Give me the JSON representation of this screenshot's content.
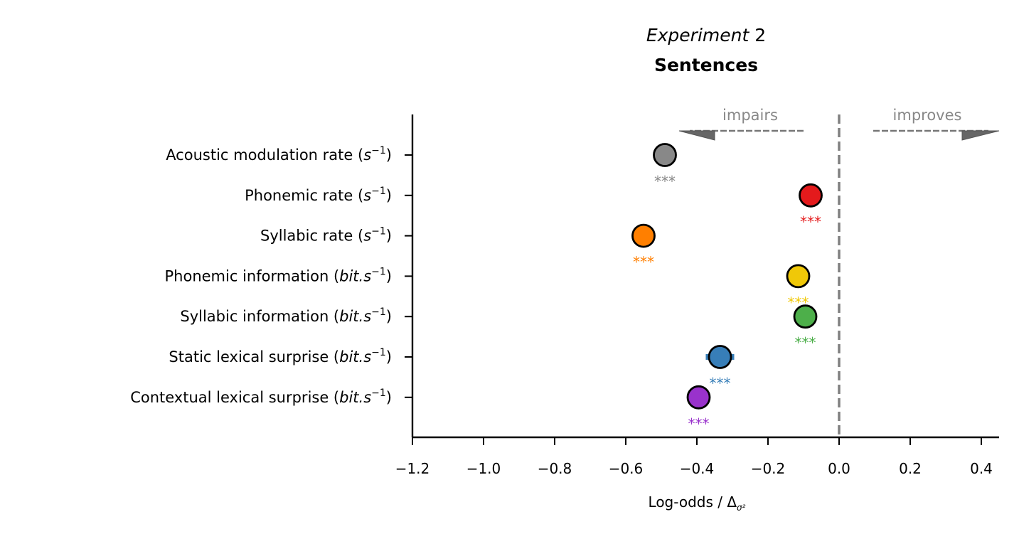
{
  "chart_data": {
    "type": "scatter",
    "title_line1_word": "Experiment",
    "title_line1_num": "2",
    "title_line2": "Sentences",
    "xlabel_main": "Log-odds / Δ",
    "xlabel_sub": "σ²",
    "xlim": [
      -1.2,
      0.45
    ],
    "x_ticks": [
      -1.2,
      -1.0,
      -0.8,
      -0.6,
      -0.4,
      -0.2,
      0.0,
      0.2,
      0.4
    ],
    "x_tick_labels": [
      "−1.2",
      "−1.0",
      "−0.8",
      "−0.6",
      "−0.4",
      "−0.2",
      "0.0",
      "0.2",
      "0.4"
    ],
    "reference_line_x": 0.0,
    "annotations": {
      "left": "impairs",
      "right": "improves"
    },
    "points": [
      {
        "label_main": "Acoustic modulation rate (",
        "label_math": "s",
        "label_sup": "−1",
        "label_end": ")",
        "x": -0.49,
        "sig": "***",
        "color": "#888888"
      },
      {
        "label_main": "Phonemic rate (",
        "label_math": "s",
        "label_sup": "−1",
        "label_end": ")",
        "x": -0.08,
        "sig": "***",
        "color": "#e41a1c"
      },
      {
        "label_main": "Syllabic rate (",
        "label_math": "s",
        "label_sup": "−1",
        "label_end": ")",
        "x": -0.55,
        "sig": "***",
        "color": "#ff7f00"
      },
      {
        "label_main": "Phonemic information (",
        "label_math": "bit.s",
        "label_sup": "−1",
        "label_end": ")",
        "x": -0.115,
        "sig": "***",
        "color": "#f0c808"
      },
      {
        "label_main": "Syllabic information (",
        "label_math": "bit.s",
        "label_sup": "−1",
        "label_end": ")",
        "x": -0.095,
        "sig": "***",
        "color": "#4daf4a"
      },
      {
        "label_main": "Static lexical surprise (",
        "label_math": "bit.s",
        "label_sup": "−1",
        "label_end": ")",
        "x": -0.335,
        "sig": "***",
        "color": "#377eb8",
        "ci": [
          -0.375,
          -0.295
        ]
      },
      {
        "label_main": "Contextual lexical surprise (",
        "label_math": "bit.s",
        "label_sup": "−1",
        "label_end": ")",
        "x": -0.395,
        "sig": "***",
        "color": "#9932cc"
      }
    ]
  }
}
